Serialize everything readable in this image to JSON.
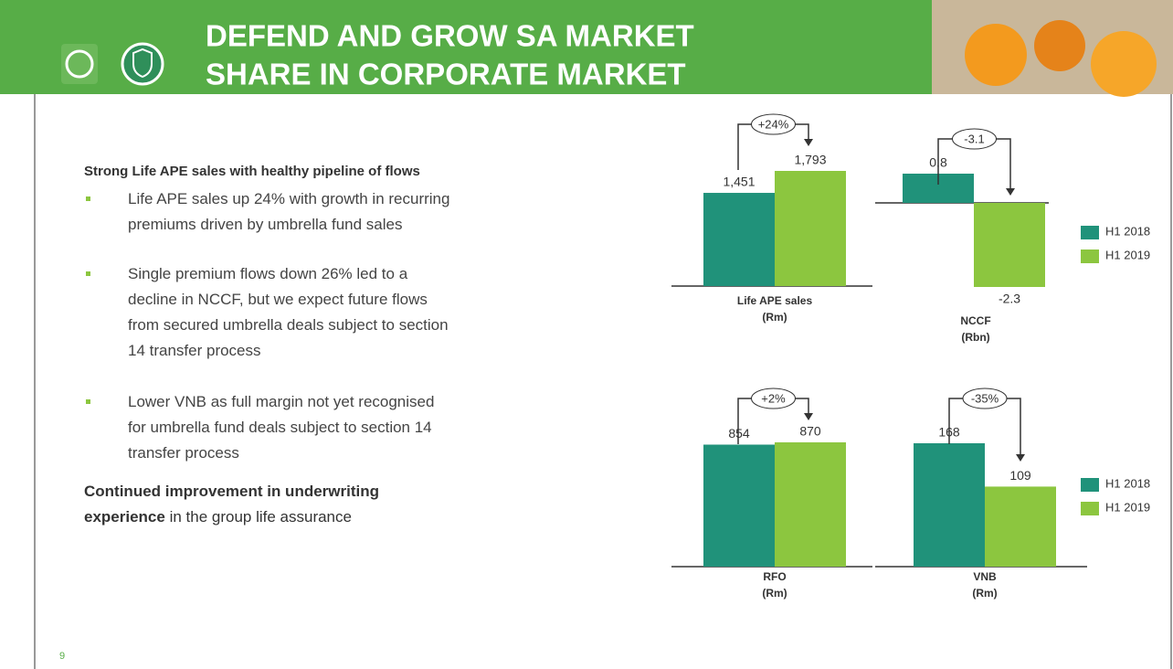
{
  "header": {
    "title_lines": [
      "DEFEND AND GROW SA MARKET",
      "SHARE IN CORPORATE MARKET"
    ]
  },
  "body": {
    "heading": "Strong Life APE sales with healthy pipeline of flows",
    "bullets": [
      {
        "lines": [
          "Life APE sales up 24% with growth in recurring",
          "premiums driven by umbrella fund sales"
        ]
      },
      {
        "lines": [
          "Single premium flows down 26% led to a",
          "decline in NCCF, but we expect future flows",
          "from secured umbrella deals subject to section",
          "14 transfer process"
        ]
      },
      {
        "lines": [
          "Lower VNB as full margin not yet recognised",
          "for umbrella fund deals subject to section 14",
          "transfer process"
        ]
      }
    ],
    "closing": {
      "bold_lines": [
        "Continued improvement in underwriting",
        "experience"
      ],
      "rest": " in the group life assurance"
    }
  },
  "page_number": "9",
  "chart_data": [
    {
      "type": "bar",
      "categories": [
        "Life APE sales"
      ],
      "unit": "(Rm)",
      "annotation": "+24%",
      "legend": "none",
      "series": [
        {
          "name": "H1 2018",
          "color": "#20927a",
          "values": [
            1451
          ],
          "value_labels": [
            "1,451"
          ]
        },
        {
          "name": "H1 2019",
          "color": "#8cc63f",
          "values": [
            1793
          ],
          "value_labels": [
            "1,793"
          ]
        }
      ]
    },
    {
      "type": "bar",
      "categories": [
        "NCCF"
      ],
      "unit": "(Rbn)",
      "annotation": "-3.1",
      "legend": "right",
      "series": [
        {
          "name": "H1 2018",
          "color": "#20927a",
          "values": [
            0.8
          ]
        },
        {
          "name": "H1 2019",
          "color": "#8cc63f",
          "values": [
            -2.3
          ]
        }
      ]
    },
    {
      "type": "bar",
      "categories": [
        "RFO"
      ],
      "unit": "(Rm)",
      "annotation": "+2%",
      "legend": "none",
      "series": [
        {
          "name": "H1 2018",
          "color": "#20927a",
          "values": [
            854
          ]
        },
        {
          "name": "H1 2019",
          "color": "#8cc63f",
          "values": [
            870
          ]
        }
      ]
    },
    {
      "type": "bar",
      "categories": [
        "VNB"
      ],
      "unit": "(Rm)",
      "annotation": "-35%",
      "legend": "right",
      "series": [
        {
          "name": "H1 2018",
          "color": "#20927a",
          "values": [
            168
          ]
        },
        {
          "name": "H1 2019",
          "color": "#8cc63f",
          "values": [
            109
          ]
        }
      ]
    }
  ]
}
